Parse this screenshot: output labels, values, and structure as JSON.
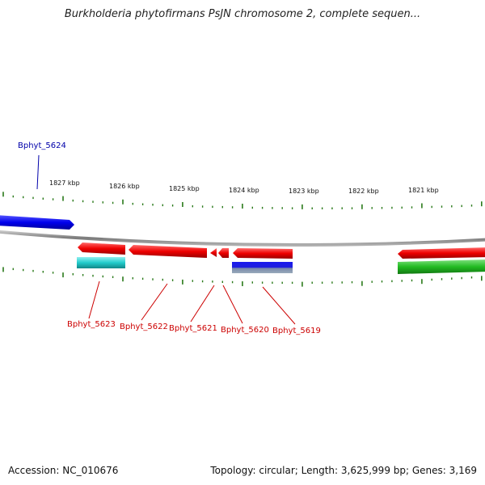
{
  "title": "Burkholderia phytofirmans PsJN chromosome 2, complete sequen...",
  "footer": {
    "accession": "Accession: NC_010676",
    "summary": "Topology: circular; Length: 3,625,999 bp; Genes: 3,169"
  },
  "colors": {
    "tick": "#2a7a1a",
    "backbone": "#808080",
    "reverse_strand_label": "#cc0000",
    "forward_strand_label": "#0000aa"
  },
  "ticks": [
    {
      "label": "1827 kbp"
    },
    {
      "label": "1826 kbp"
    },
    {
      "label": "1825 kbp"
    },
    {
      "label": "1824 kbp"
    },
    {
      "label": "1823 kbp"
    },
    {
      "label": "1822 kbp"
    },
    {
      "label": "1821 kbp"
    }
  ],
  "genes": [
    {
      "name": "Bphyt_5624",
      "color": "#0000aa"
    },
    {
      "name": "Bphyt_5623",
      "color": "#cc0000"
    },
    {
      "name": "Bphyt_5622",
      "color": "#cc0000"
    },
    {
      "name": "Bphyt_5621",
      "color": "#cc0000"
    },
    {
      "name": "Bphyt_5620",
      "color": "#cc0000"
    },
    {
      "name": "Bphyt_5619",
      "color": "#cc0000"
    }
  ]
}
